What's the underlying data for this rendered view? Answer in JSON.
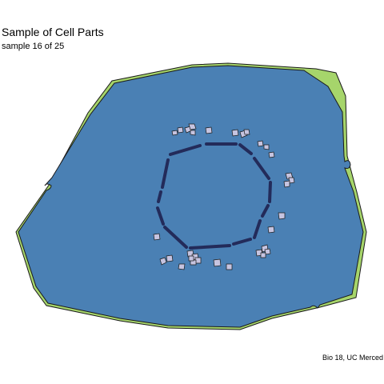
{
  "header": {
    "title": "Sample of Cell Parts",
    "subtitle": "sample 16 of 25"
  },
  "footer": {
    "caption": "Bio 18, UC Merced"
  },
  "colors": {
    "background": "#ffffff",
    "cell_wall": "#a6d56b",
    "cytoplasm": "#4a80b4",
    "nuclear_envelope": "#232b5a",
    "granule_fill": "#c6c4e0",
    "outline": "#1a1a1a"
  }
}
